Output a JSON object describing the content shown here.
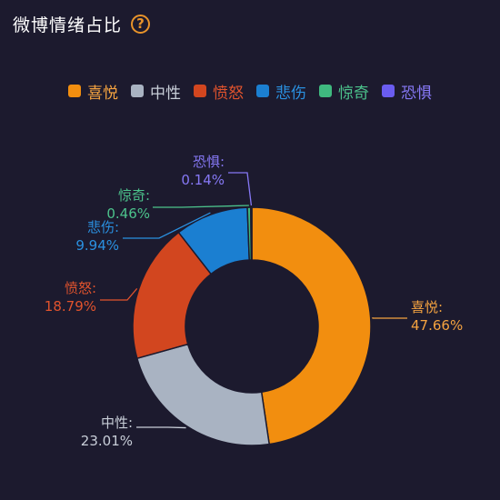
{
  "header": {
    "title": "微博情绪占比",
    "help_icon": "question-circle-icon"
  },
  "chart_data": {
    "type": "pie",
    "subtype": "donut",
    "legend_position": "top-center",
    "categories": [
      "喜悦",
      "中性",
      "愤怒",
      "悲伤",
      "惊奇",
      "恐惧"
    ],
    "values": [
      47.66,
      23.01,
      18.79,
      9.94,
      0.46,
      0.14
    ],
    "value_suffix": "%",
    "colors": [
      "#f28e0f",
      "#a9b3c2",
      "#d2461f",
      "#1b7fd1",
      "#3fb97f",
      "#6a5cf0"
    ],
    "label_colors": [
      "#f5a340",
      "#c8ced8",
      "#e1532d",
      "#2a90e0",
      "#4cc38c",
      "#8678f5"
    ]
  }
}
